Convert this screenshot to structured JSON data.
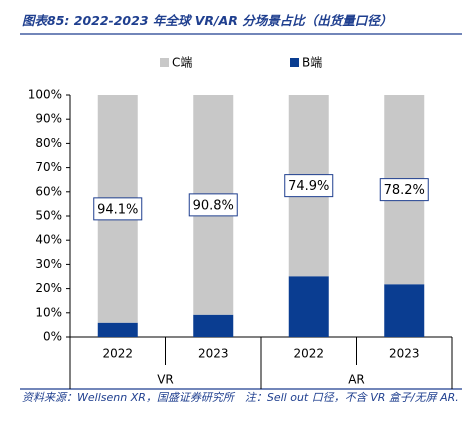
{
  "chart_data": {
    "type": "stacked_bar",
    "title": "图表85:  2022-2023 年全球 VR/AR 分场景占比（出货量口径）",
    "categories": [
      "2022",
      "2023",
      "2022",
      "2023"
    ],
    "groups": [
      "VR",
      "AR"
    ],
    "series": [
      {
        "name": "B端",
        "color": "#0a3d91",
        "values": [
          5.9,
          9.2,
          25.1,
          21.8
        ]
      },
      {
        "name": "C端",
        "color": "#c8c8c8",
        "values": [
          94.1,
          90.8,
          74.9,
          78.2
        ],
        "value_labels": [
          "94.1%",
          "90.8%",
          "74.9%",
          "78.2%"
        ]
      }
    ],
    "ylim": [
      0,
      100
    ],
    "yticks": [
      {
        "value": 0,
        "label": "0%"
      },
      {
        "value": 10,
        "label": "10%"
      },
      {
        "value": 20,
        "label": "20%"
      },
      {
        "value": 30,
        "label": "30%"
      },
      {
        "value": 40,
        "label": "40%"
      },
      {
        "value": 50,
        "label": "50%"
      },
      {
        "value": 60,
        "label": "60%"
      },
      {
        "value": 70,
        "label": "70%"
      },
      {
        "value": 80,
        "label": "80%"
      },
      {
        "value": 90,
        "label": "90%"
      },
      {
        "value": 100,
        "label": "100%"
      }
    ],
    "source": "资料来源：Wellsenn XR，国盛证券研究所　注：Sell out 口径，不含 VR 盒子/无屏 AR."
  }
}
